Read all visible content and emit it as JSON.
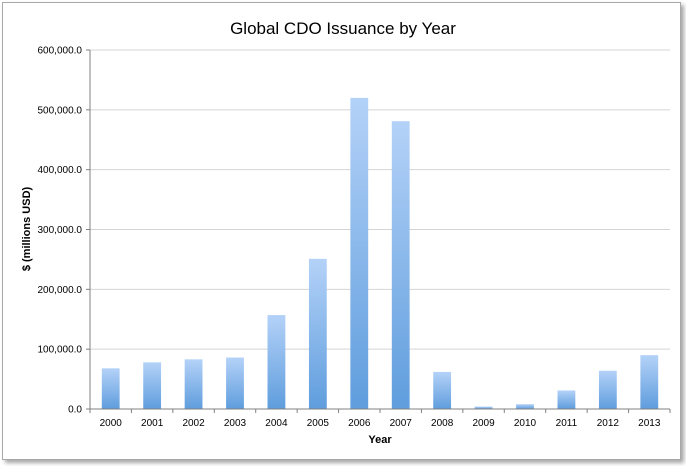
{
  "chart_data": {
    "type": "bar",
    "title": "Global CDO Issuance by Year",
    "xlabel": "Year",
    "ylabel": "$ (millions USD)",
    "ylim": [
      0,
      600000
    ],
    "yticks": [
      "0.0",
      "100,000.0",
      "200,000.0",
      "300,000.0",
      "400,000.0",
      "500,000.0",
      "600,000.0"
    ],
    "ytick_values": [
      0,
      100000,
      200000,
      300000,
      400000,
      500000,
      600000
    ],
    "categories": [
      "2000",
      "2001",
      "2002",
      "2003",
      "2004",
      "2005",
      "2006",
      "2007",
      "2008",
      "2009",
      "2010",
      "2011",
      "2012",
      "2013"
    ],
    "values": [
      68000,
      78000,
      83000,
      86000,
      157000,
      251000,
      520000,
      481000,
      62000,
      4000,
      8000,
      31000,
      64000,
      90000
    ],
    "grid": true,
    "legend": false,
    "bar_color_top": "#b4d2f8",
    "bar_color_bottom": "#5f9ddd"
  }
}
